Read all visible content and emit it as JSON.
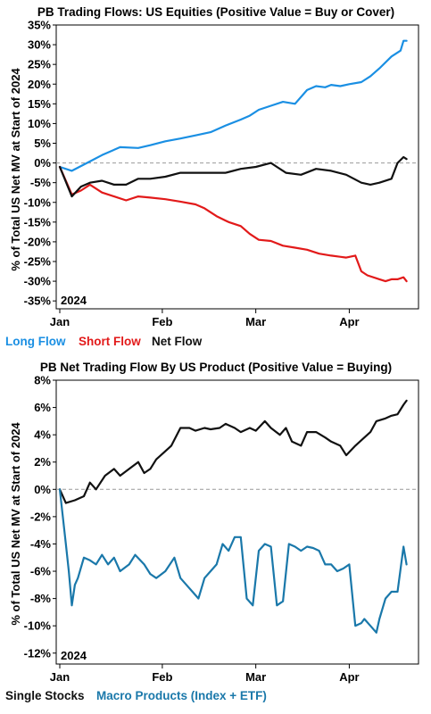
{
  "chart_data": [
    {
      "type": "line",
      "title": "PB Trading Flows: US Equities (Positive Value = Buy or Cover)",
      "ylabel": "% of Total US Net MV at Start of 2024",
      "xlabel": "",
      "year_label": "2024",
      "x_ticks": [
        "Jan",
        "Feb",
        "Mar",
        "Apr"
      ],
      "y_ticks": [
        "35%",
        "30%",
        "25%",
        "20%",
        "15%",
        "10%",
        "5%",
        "0%",
        "-5%",
        "-10%",
        "-15%",
        "-20%",
        "-25%",
        "-30%",
        "-35%"
      ],
      "ylim": [
        -37,
        35
      ],
      "x_range": [
        0,
        116
      ],
      "grid": false,
      "zero_line": true,
      "legend_position": "bottom",
      "series": [
        {
          "name": "Long Flow",
          "color": "#1a8fe3",
          "x": [
            0,
            4,
            9,
            14,
            20,
            26,
            30,
            35,
            40,
            45,
            50,
            55,
            60,
            63,
            66,
            70,
            74,
            78,
            82,
            85,
            88,
            90,
            93,
            96,
            100,
            103,
            106,
            110,
            113,
            114,
            115
          ],
          "y": [
            -1,
            -2,
            0,
            2,
            4,
            3.8,
            4.5,
            5.5,
            6.2,
            7,
            7.8,
            9.5,
            11,
            12,
            13.5,
            14.5,
            15.5,
            15,
            18.5,
            19.5,
            19.2,
            19.8,
            19.5,
            20,
            20.5,
            22,
            24,
            27,
            28.5,
            31,
            31
          ]
        },
        {
          "name": "Short Flow",
          "color": "#e21a1a",
          "x": [
            0,
            4,
            7,
            10,
            14,
            18,
            22,
            26,
            30,
            35,
            40,
            45,
            48,
            52,
            56,
            60,
            63,
            66,
            70,
            74,
            78,
            82,
            86,
            90,
            95,
            98,
            100,
            102,
            106,
            108,
            110,
            112,
            114,
            115
          ],
          "y": [
            -1,
            -8,
            -7,
            -5.5,
            -7.5,
            -8.5,
            -9.5,
            -8.5,
            -8.8,
            -9.2,
            -9.8,
            -10.5,
            -11.5,
            -13.5,
            -15,
            -16,
            -18,
            -19.5,
            -19.8,
            -21,
            -21.5,
            -22,
            -23,
            -23.5,
            -24,
            -23.5,
            -27.5,
            -28.5,
            -29.5,
            -30,
            -29.5,
            -29.5,
            -29,
            -30
          ]
        },
        {
          "name": "Net Flow",
          "color": "#111111",
          "x": [
            0,
            4,
            7,
            10,
            14,
            18,
            22,
            26,
            30,
            35,
            40,
            45,
            50,
            55,
            60,
            65,
            70,
            72,
            75,
            80,
            85,
            90,
            95,
            100,
            103,
            106,
            110,
            112,
            114,
            115
          ],
          "y": [
            -1,
            -8.5,
            -6,
            -5,
            -4.5,
            -5.5,
            -5.5,
            -4,
            -4,
            -3.5,
            -2.5,
            -2.5,
            -2.5,
            -2.5,
            -1.5,
            -1,
            0,
            -1,
            -2.5,
            -3,
            -1.5,
            -2,
            -3,
            -5,
            -5.5,
            -5,
            -4,
            0,
            1.5,
            1
          ]
        }
      ]
    },
    {
      "type": "line",
      "title": "PB Net Trading Flow By US Product (Positive Value = Buying)",
      "ylabel": "% of Total US Net MV at Start of 2024",
      "xlabel": "",
      "year_label": "2024",
      "x_ticks": [
        "Jan",
        "Feb",
        "Mar",
        "Apr"
      ],
      "y_ticks": [
        "8%",
        "6%",
        "4%",
        "2%",
        "0%",
        "-2%",
        "-4%",
        "-6%",
        "-8%",
        "-10%",
        "-12%"
      ],
      "ylim": [
        -12.8,
        8
      ],
      "x_range": [
        0,
        116
      ],
      "grid": false,
      "zero_line": true,
      "legend_position": "bottom",
      "series": [
        {
          "name": "Single Stocks",
          "color": "#111111",
          "x": [
            0,
            2,
            5,
            8,
            10,
            12,
            15,
            18,
            20,
            23,
            26,
            28,
            30,
            32,
            34,
            37,
            40,
            43,
            45,
            48,
            50,
            53,
            55,
            58,
            60,
            63,
            65,
            68,
            70,
            73,
            75,
            77,
            80,
            82,
            85,
            88,
            90,
            93,
            95,
            98,
            100,
            103,
            105,
            108,
            110,
            112,
            114,
            115
          ],
          "y": [
            0,
            -1,
            -0.8,
            -0.5,
            0.5,
            0,
            1,
            1.5,
            1,
            1.5,
            2,
            1.2,
            1.5,
            2.2,
            2.6,
            3.2,
            4.5,
            4.5,
            4.3,
            4.5,
            4.4,
            4.5,
            4.8,
            4.5,
            4.2,
            4.5,
            4.3,
            5,
            4.5,
            4,
            4.5,
            3.5,
            3.2,
            4.2,
            4.2,
            3.8,
            3.5,
            3.2,
            2.5,
            3.2,
            3.6,
            4.2,
            5,
            5.2,
            5.4,
            5.5,
            6.2,
            6.5
          ]
        },
        {
          "name": "Macro Products (Index + ETF)",
          "color": "#1a78aa",
          "x": [
            0,
            1,
            2,
            3,
            4,
            5,
            6,
            8,
            10,
            12,
            14,
            16,
            18,
            20,
            23,
            25,
            28,
            30,
            32,
            35,
            38,
            40,
            42,
            44,
            46,
            48,
            50,
            52,
            54,
            56,
            58,
            60,
            62,
            64,
            66,
            68,
            70,
            72,
            74,
            76,
            78,
            80,
            82,
            84,
            86,
            88,
            90,
            92,
            94,
            96,
            98,
            100,
            101,
            103,
            105,
            106,
            108,
            110,
            112,
            114,
            115
          ],
          "y": [
            0,
            -2,
            -4,
            -6,
            -8.5,
            -7,
            -6.5,
            -5,
            -5.2,
            -5.5,
            -4.8,
            -5.5,
            -5,
            -6,
            -5.5,
            -4.8,
            -5.5,
            -6.2,
            -6.5,
            -6,
            -5,
            -6.5,
            -7,
            -7.5,
            -8,
            -6.5,
            -6,
            -5.5,
            -4,
            -4.5,
            -3.5,
            -3.5,
            -8,
            -8.5,
            -4.5,
            -4,
            -4.2,
            -8.5,
            -8.2,
            -4,
            -4.2,
            -4.5,
            -4.2,
            -4.3,
            -4.5,
            -5.5,
            -5.5,
            -6,
            -5.8,
            -5.5,
            -10,
            -9.8,
            -9.5,
            -10,
            -10.5,
            -9.5,
            -8,
            -7.5,
            -7.5,
            -4.2,
            -5.5
          ]
        }
      ]
    }
  ]
}
